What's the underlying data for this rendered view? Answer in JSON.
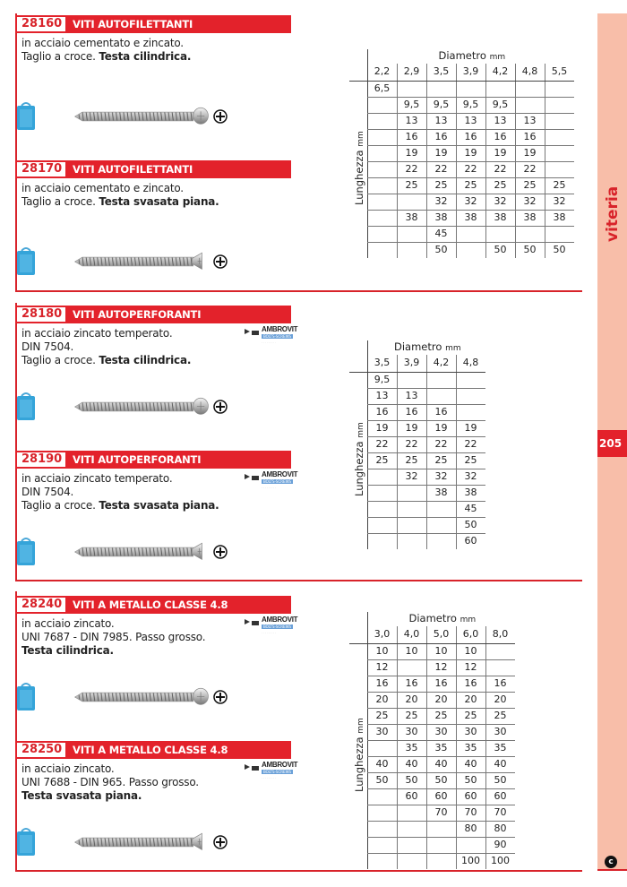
{
  "side_tab": {
    "label": "viteria",
    "page_number": "205",
    "band_color": "#f8bea9",
    "accent": "#e3222b"
  },
  "brand_logo": {
    "name": "AMBROVIT",
    "tagline": "BOLTS-SCREWS"
  },
  "products": [
    {
      "code": "28160",
      "title": "VITI AUTOFILETTANTI",
      "desc_lines": [
        "in acciaio cementato e zincato.",
        "Taglio a croce."
      ],
      "desc_bold": "Testa cilindrica.",
      "head": "pan",
      "logo": false
    },
    {
      "code": "28170",
      "title": "VITI AUTOFILETTANTI",
      "desc_lines": [
        "in acciaio cementato e zincato.",
        "Taglio a croce."
      ],
      "desc_bold": "Testa svasata piana.",
      "head": "flat",
      "logo": false
    },
    {
      "code": "28180",
      "title": "VITI AUTOPERFORANTI",
      "desc_lines": [
        "in acciaio zincato temperato.",
        "DIN 7504.",
        "Taglio a croce."
      ],
      "desc_bold": "Testa cilindrica.",
      "head": "pan",
      "logo": true
    },
    {
      "code": "28190",
      "title": "VITI AUTOPERFORANTI",
      "desc_lines": [
        "in acciaio zincato temperato.",
        "DIN 7504.",
        "Taglio a croce."
      ],
      "desc_bold": "Testa svasata piana.",
      "head": "flat",
      "logo": true
    },
    {
      "code": "28240",
      "title": "VITI A METALLO CLASSE 4.8",
      "desc_lines": [
        "in acciaio zincato.",
        "UNI 7687 - DIN 7985. Passo grosso."
      ],
      "desc_bold": "Testa cilindrica.",
      "head": "pan",
      "logo": true
    },
    {
      "code": "28250",
      "title": "VITI A METALLO CLASSE 4.8",
      "desc_lines": [
        "in acciaio zincato.",
        "UNI 7688 - DIN 965. Passo grosso."
      ],
      "desc_bold": "Testa svasata piana.",
      "head": "flat",
      "logo": true
    }
  ],
  "tables": [
    {
      "col_title": "Diametro",
      "col_unit": "mm",
      "row_title": "Lunghezza",
      "row_unit": "mm",
      "columns": [
        "2,2",
        "2,9",
        "3,5",
        "3,9",
        "4,2",
        "4,8",
        "5,5"
      ],
      "rows": [
        [
          "6,5",
          "",
          "",
          "",
          "",
          "",
          ""
        ],
        [
          "",
          "9,5",
          "9,5",
          "9,5",
          "9,5",
          "",
          ""
        ],
        [
          "",
          "13",
          "13",
          "13",
          "13",
          "13",
          ""
        ],
        [
          "",
          "16",
          "16",
          "16",
          "16",
          "16",
          ""
        ],
        [
          "",
          "19",
          "19",
          "19",
          "19",
          "19",
          ""
        ],
        [
          "",
          "22",
          "22",
          "22",
          "22",
          "22",
          ""
        ],
        [
          "",
          "25",
          "25",
          "25",
          "25",
          "25",
          "25"
        ],
        [
          "",
          "",
          "32",
          "32",
          "32",
          "32",
          "32"
        ],
        [
          "",
          "38",
          "38",
          "38",
          "38",
          "38",
          "38"
        ],
        [
          "",
          "",
          "45",
          "",
          "",
          "",
          ""
        ],
        [
          "",
          "",
          "50",
          "",
          "50",
          "50",
          "50"
        ]
      ]
    },
    {
      "col_title": "Diametro",
      "col_unit": "mm",
      "row_title": "Lunghezza",
      "row_unit": "mm",
      "columns": [
        "3,5",
        "3,9",
        "4,2",
        "4,8"
      ],
      "rows": [
        [
          "9,5",
          "",
          "",
          ""
        ],
        [
          "13",
          "13",
          "",
          ""
        ],
        [
          "16",
          "16",
          "16",
          ""
        ],
        [
          "19",
          "19",
          "19",
          "19"
        ],
        [
          "22",
          "22",
          "22",
          "22"
        ],
        [
          "25",
          "25",
          "25",
          "25"
        ],
        [
          "",
          "32",
          "32",
          "32"
        ],
        [
          "",
          "",
          "38",
          "38"
        ],
        [
          "",
          "",
          "",
          "45"
        ],
        [
          "",
          "",
          "",
          "50"
        ],
        [
          "",
          "",
          "",
          "60"
        ]
      ]
    },
    {
      "col_title": "Diametro",
      "col_unit": "mm",
      "row_title": "Lunghezza",
      "row_unit": "mm",
      "columns": [
        "3,0",
        "4,0",
        "5,0",
        "6,0",
        "8,0"
      ],
      "rows": [
        [
          "10",
          "10",
          "10",
          "10",
          ""
        ],
        [
          "12",
          "",
          "12",
          "12",
          ""
        ],
        [
          "16",
          "16",
          "16",
          "16",
          "16"
        ],
        [
          "20",
          "20",
          "20",
          "20",
          "20"
        ],
        [
          "25",
          "25",
          "25",
          "25",
          "25"
        ],
        [
          "30",
          "30",
          "30",
          "30",
          "30"
        ],
        [
          "",
          "35",
          "35",
          "35",
          "35"
        ],
        [
          "40",
          "40",
          "40",
          "40",
          "40"
        ],
        [
          "50",
          "50",
          "50",
          "50",
          "50"
        ],
        [
          "",
          "60",
          "60",
          "60",
          "60"
        ],
        [
          "",
          "",
          "70",
          "70",
          "70"
        ],
        [
          "",
          "",
          "",
          "80",
          "80"
        ],
        [
          "",
          "",
          "",
          "",
          "90"
        ],
        [
          "",
          "",
          "",
          "100",
          "100"
        ]
      ]
    }
  ]
}
